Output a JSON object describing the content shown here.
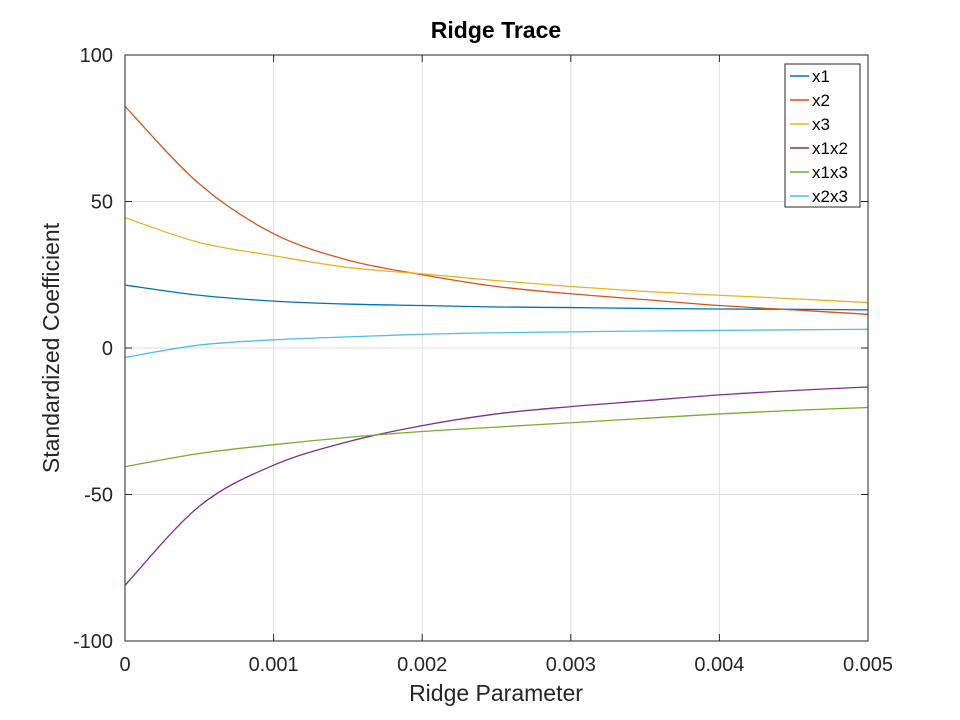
{
  "chart_data": {
    "type": "line",
    "title": "Ridge Trace",
    "xlabel": "Ridge Parameter",
    "ylabel": "Standardized Coefficient",
    "xlim": [
      0,
      0.005
    ],
    "ylim": [
      -100,
      100
    ],
    "xticks": [
      0,
      0.001,
      0.002,
      0.003,
      0.004,
      0.005
    ],
    "xtick_labels": [
      "0",
      "0.001",
      "0.002",
      "0.003",
      "0.004",
      "0.005"
    ],
    "yticks": [
      -100,
      -50,
      0,
      50,
      100
    ],
    "ytick_labels": [
      "-100",
      "-50",
      "0",
      "50",
      "100"
    ],
    "grid": true,
    "legend_position": "top-right",
    "x": [
      0,
      0.0005,
      0.001,
      0.0015,
      0.002,
      0.0025,
      0.003,
      0.0035,
      0.004,
      0.0045,
      0.005
    ],
    "series": [
      {
        "name": "x1",
        "color": "#0072BD",
        "values": [
          21.5,
          18,
          16,
          15,
          14.5,
          14,
          13.8,
          13.5,
          13.3,
          13.2,
          13
        ]
      },
      {
        "name": "x2",
        "color": "#D95319",
        "values": [
          82.5,
          56,
          39,
          30,
          25,
          21,
          18.5,
          16.5,
          14.5,
          13,
          11.5
        ]
      },
      {
        "name": "x3",
        "color": "#EDB120",
        "values": [
          44.5,
          36,
          31.5,
          27.5,
          25.3,
          23,
          21,
          19.3,
          18,
          16.8,
          15.5
        ]
      },
      {
        "name": "x1x2",
        "color": "#7E2F8E",
        "values": [
          -81,
          -54,
          -40,
          -32,
          -26.5,
          -22.5,
          -20,
          -18,
          -16,
          -14.5,
          -13.3
        ]
      },
      {
        "name": "x1x3",
        "color": "#77AC30",
        "values": [
          -40.5,
          -36,
          -33,
          -30.5,
          -28.5,
          -27,
          -25.5,
          -24,
          -22.5,
          -21.3,
          -20.3
        ]
      },
      {
        "name": "x2x3",
        "color": "#4DBEEE",
        "values": [
          -3.2,
          1,
          2.8,
          3.8,
          4.7,
          5.2,
          5.5,
          5.8,
          6,
          6.2,
          6.4
        ]
      }
    ]
  }
}
